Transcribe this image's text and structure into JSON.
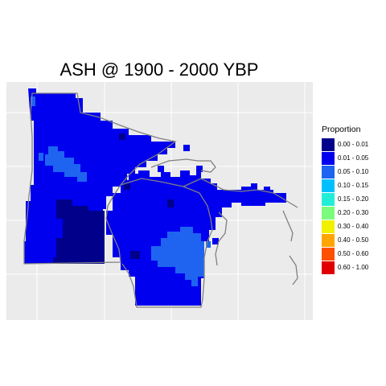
{
  "title": "ASH @ 1900 - 2000 YBP",
  "colors": {
    "panel_background": "#EBEBEB",
    "grid_line": "#FFFFFF",
    "state_border": "#808080"
  },
  "legend": {
    "title": "Proportion",
    "placement": "right",
    "entries": [
      {
        "label": "0.00 - 0.01",
        "color": "#00008B"
      },
      {
        "label": "0.01 - 0.05",
        "color": "#0000EE"
      },
      {
        "label": "0.05 - 0.10",
        "color": "#1E64F0"
      },
      {
        "label": "0.10 - 0.15",
        "color": "#00BFFF"
      },
      {
        "label": "0.15 - 0.20",
        "color": "#22EED8"
      },
      {
        "label": "0.20 - 0.30",
        "color": "#7CFC7C"
      },
      {
        "label": "0.30 - 0.40",
        "color": "#F0F000"
      },
      {
        "label": "0.40 - 0.50",
        "color": "#FFA500"
      },
      {
        "label": "0.50 - 0.60",
        "color": "#FF5000"
      },
      {
        "label": "0.60 - 1.00",
        "color": "#E00000"
      }
    ]
  }
}
